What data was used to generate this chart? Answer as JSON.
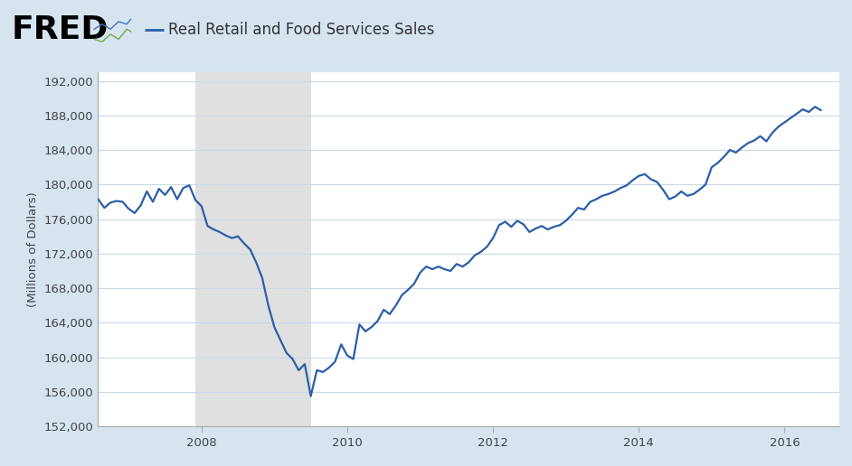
{
  "title": "Real Retail and Food Services Sales",
  "ylabel": "(Millions of Dollars)",
  "line_color": "#2b5ea7",
  "line_width": 1.6,
  "recession_start": 2007.917,
  "recession_end": 2009.5,
  "recession_color": "#e0e0e0",
  "background_color": "#d6e4f0",
  "plot_bg_color": "#ffffff",
  "ylim": [
    152000,
    193000
  ],
  "yticks": [
    152000,
    156000,
    160000,
    164000,
    168000,
    172000,
    176000,
    180000,
    184000,
    188000,
    192000
  ],
  "xlim_start": 2006.58,
  "xlim_end": 2016.75,
  "xticks": [
    2008,
    2010,
    2012,
    2014,
    2016
  ],
  "grid_color": "#c8d8e8",
  "series": [
    [
      2006.583,
      178300
    ],
    [
      2006.667,
      177300
    ],
    [
      2006.75,
      177900
    ],
    [
      2006.833,
      178100
    ],
    [
      2006.917,
      178000
    ],
    [
      2007.0,
      177200
    ],
    [
      2007.083,
      176700
    ],
    [
      2007.167,
      177600
    ],
    [
      2007.25,
      179200
    ],
    [
      2007.333,
      178000
    ],
    [
      2007.417,
      179500
    ],
    [
      2007.5,
      178800
    ],
    [
      2007.583,
      179700
    ],
    [
      2007.667,
      178300
    ],
    [
      2007.75,
      179600
    ],
    [
      2007.833,
      179900
    ],
    [
      2007.917,
      178200
    ],
    [
      2008.0,
      177500
    ],
    [
      2008.083,
      175200
    ],
    [
      2008.167,
      174800
    ],
    [
      2008.25,
      174500
    ],
    [
      2008.333,
      174100
    ],
    [
      2008.417,
      173800
    ],
    [
      2008.5,
      174000
    ],
    [
      2008.583,
      173200
    ],
    [
      2008.667,
      172500
    ],
    [
      2008.75,
      171000
    ],
    [
      2008.833,
      169200
    ],
    [
      2008.917,
      166000
    ],
    [
      2009.0,
      163500
    ],
    [
      2009.083,
      162000
    ],
    [
      2009.167,
      160500
    ],
    [
      2009.25,
      159800
    ],
    [
      2009.333,
      158500
    ],
    [
      2009.417,
      159200
    ],
    [
      2009.5,
      155500
    ],
    [
      2009.583,
      158500
    ],
    [
      2009.667,
      158300
    ],
    [
      2009.75,
      158800
    ],
    [
      2009.833,
      159500
    ],
    [
      2009.917,
      161500
    ],
    [
      2010.0,
      160200
    ],
    [
      2010.083,
      159800
    ],
    [
      2010.167,
      163800
    ],
    [
      2010.25,
      163000
    ],
    [
      2010.333,
      163500
    ],
    [
      2010.417,
      164200
    ],
    [
      2010.5,
      165500
    ],
    [
      2010.583,
      165000
    ],
    [
      2010.667,
      166000
    ],
    [
      2010.75,
      167200
    ],
    [
      2010.833,
      167800
    ],
    [
      2010.917,
      168500
    ],
    [
      2011.0,
      169800
    ],
    [
      2011.083,
      170500
    ],
    [
      2011.167,
      170200
    ],
    [
      2011.25,
      170500
    ],
    [
      2011.333,
      170200
    ],
    [
      2011.417,
      170000
    ],
    [
      2011.5,
      170800
    ],
    [
      2011.583,
      170500
    ],
    [
      2011.667,
      171000
    ],
    [
      2011.75,
      171800
    ],
    [
      2011.833,
      172200
    ],
    [
      2011.917,
      172800
    ],
    [
      2012.0,
      173800
    ],
    [
      2012.083,
      175300
    ],
    [
      2012.167,
      175700
    ],
    [
      2012.25,
      175100
    ],
    [
      2012.333,
      175800
    ],
    [
      2012.417,
      175400
    ],
    [
      2012.5,
      174500
    ],
    [
      2012.583,
      174900
    ],
    [
      2012.667,
      175200
    ],
    [
      2012.75,
      174800
    ],
    [
      2012.833,
      175100
    ],
    [
      2012.917,
      175300
    ],
    [
      2013.0,
      175800
    ],
    [
      2013.083,
      176500
    ],
    [
      2013.167,
      177300
    ],
    [
      2013.25,
      177100
    ],
    [
      2013.333,
      178000
    ],
    [
      2013.417,
      178300
    ],
    [
      2013.5,
      178700
    ],
    [
      2013.583,
      178900
    ],
    [
      2013.667,
      179200
    ],
    [
      2013.75,
      179600
    ],
    [
      2013.833,
      179900
    ],
    [
      2013.917,
      180500
    ],
    [
      2014.0,
      181000
    ],
    [
      2014.083,
      181200
    ],
    [
      2014.167,
      180600
    ],
    [
      2014.25,
      180300
    ],
    [
      2014.333,
      179400
    ],
    [
      2014.417,
      178300
    ],
    [
      2014.5,
      178600
    ],
    [
      2014.583,
      179200
    ],
    [
      2014.667,
      178700
    ],
    [
      2014.75,
      178900
    ],
    [
      2014.833,
      179400
    ],
    [
      2014.917,
      180000
    ],
    [
      2015.0,
      182000
    ],
    [
      2015.083,
      182500
    ],
    [
      2015.167,
      183200
    ],
    [
      2015.25,
      184000
    ],
    [
      2015.333,
      183700
    ],
    [
      2015.417,
      184300
    ],
    [
      2015.5,
      184800
    ],
    [
      2015.583,
      185100
    ],
    [
      2015.667,
      185600
    ],
    [
      2015.75,
      185000
    ],
    [
      2015.833,
      186000
    ],
    [
      2015.917,
      186700
    ],
    [
      2016.0,
      187200
    ],
    [
      2016.083,
      187700
    ],
    [
      2016.167,
      188200
    ],
    [
      2016.25,
      188700
    ],
    [
      2016.333,
      188400
    ],
    [
      2016.417,
      189000
    ],
    [
      2016.5,
      188600
    ]
  ]
}
